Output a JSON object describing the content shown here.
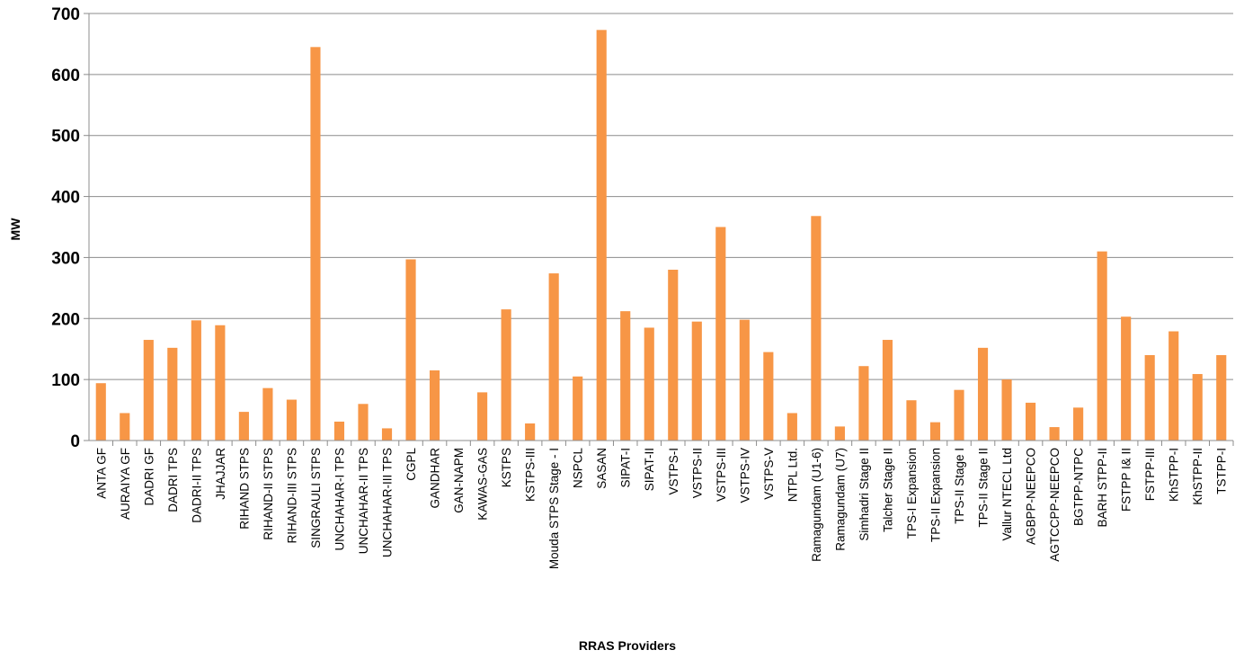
{
  "chart_data": {
    "type": "bar",
    "title": "",
    "xlabel": "RRAS Providers",
    "ylabel": "MW",
    "ylim": [
      0,
      700
    ],
    "yticks": [
      0,
      100,
      200,
      300,
      400,
      500,
      600,
      700
    ],
    "grid": true,
    "bar_color": "#F79646",
    "categories": [
      "ANTA GF",
      "AURAIYA GF",
      "DADRI GF",
      "DADRI TPS",
      "DADRI-II TPS",
      "JHAJJAR",
      "RIHAND STPS",
      "RIHAND-II STPS",
      "RIHAND-III STPS",
      "SINGRAULI STPS",
      "UNCHAHAR-I TPS",
      "UNCHAHAR-II TPS",
      "UNCHAHAR-III TPS",
      "CGPL",
      "GANDHAR",
      "GAN-NAPM",
      "KAWAS-GAS",
      "KSTPS",
      "KSTPS-III",
      "Mouda STPS Stage - I",
      "NSPCL",
      "SASAN",
      "SIPAT-I",
      "SIPAT-II",
      "VSTPS-I",
      "VSTPS-II",
      "VSTPS-III",
      "VSTPS-IV",
      "VSTPS-V",
      "NTPL Ltd.",
      "Ramagundam  (U1-6)",
      "Ramagundam (U7)",
      "Simhadri Stage II",
      "Talcher Stage II",
      "TPS-I Expansion",
      "TPS-II Expansion",
      "TPS-II Stage I",
      "TPS-II Stage II",
      "Vallur NTECL Ltd",
      "AGBPP-NEEPCO",
      "AGTCCPP-NEEPCO",
      "BGTPP-NTPC",
      "BARH STPP-II",
      "FSTPP I& II",
      "FSTPP-III",
      "KhSTPP-I",
      "KhSTPP-II",
      "TSTPP-I"
    ],
    "values": [
      94,
      45,
      165,
      152,
      197,
      189,
      47,
      86,
      67,
      645,
      31,
      60,
      20,
      297,
      115,
      0,
      79,
      215,
      28,
      274,
      105,
      673,
      212,
      185,
      280,
      195,
      350,
      198,
      145,
      45,
      368,
      23,
      122,
      165,
      66,
      30,
      83,
      152,
      100,
      62,
      22,
      54,
      310,
      203,
      140,
      179,
      109,
      140
    ]
  }
}
